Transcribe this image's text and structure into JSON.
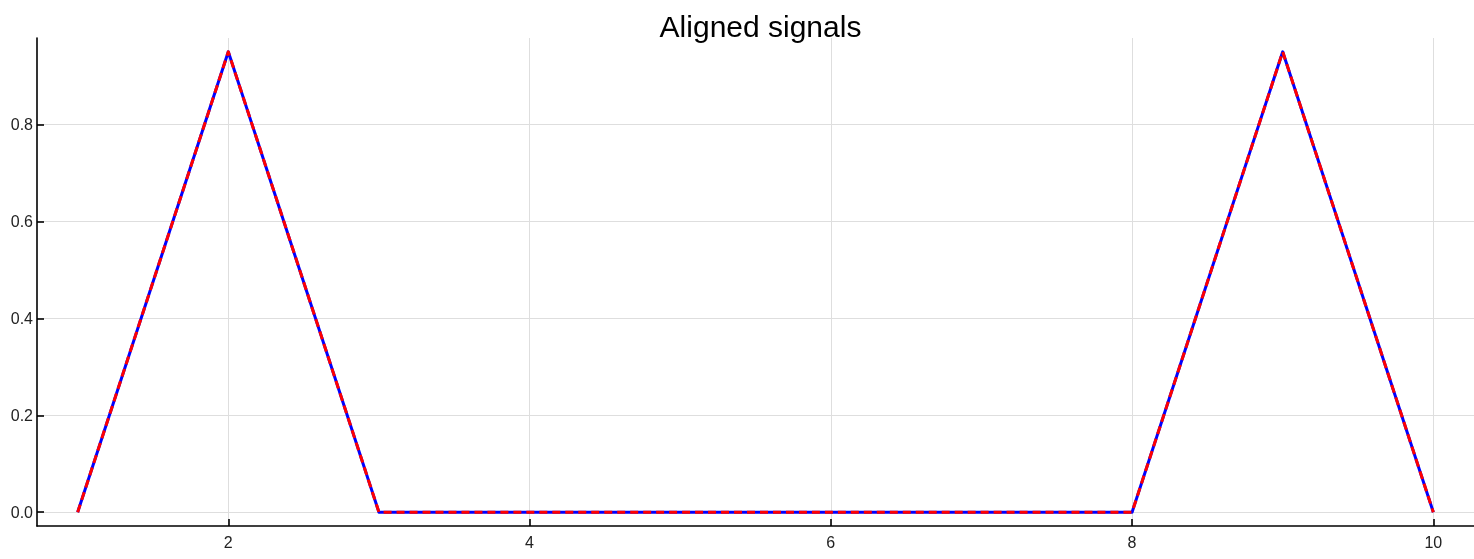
{
  "chart_data": {
    "type": "line",
    "title": "Aligned signals",
    "x": [
      1,
      2,
      3,
      4,
      5,
      6,
      7,
      8,
      9,
      10
    ],
    "series": [
      {
        "color": "#0000ff",
        "line_style": "solid",
        "values": [
          0,
          0.95,
          0,
          0,
          0,
          0,
          0,
          0,
          0.95,
          0
        ]
      },
      {
        "color": "#ff0000",
        "line_style": "dashed",
        "values": [
          0,
          0.95,
          0,
          0,
          0,
          0,
          0,
          0,
          0.95,
          0
        ]
      }
    ],
    "xlim": [
      0.73,
      10.27
    ],
    "xticks": [
      2,
      4,
      6,
      8,
      10
    ],
    "ylim": [
      -0.0285,
      0.9785
    ],
    "yticks": [
      {
        "value": 0,
        "label": "0.0"
      },
      {
        "value": 0.2,
        "label": "0.2"
      },
      {
        "value": 0.4,
        "label": "0.4"
      },
      {
        "value": 0.6,
        "label": "0.6"
      },
      {
        "value": 0.8,
        "label": "0.8"
      }
    ],
    "grid": true
  }
}
